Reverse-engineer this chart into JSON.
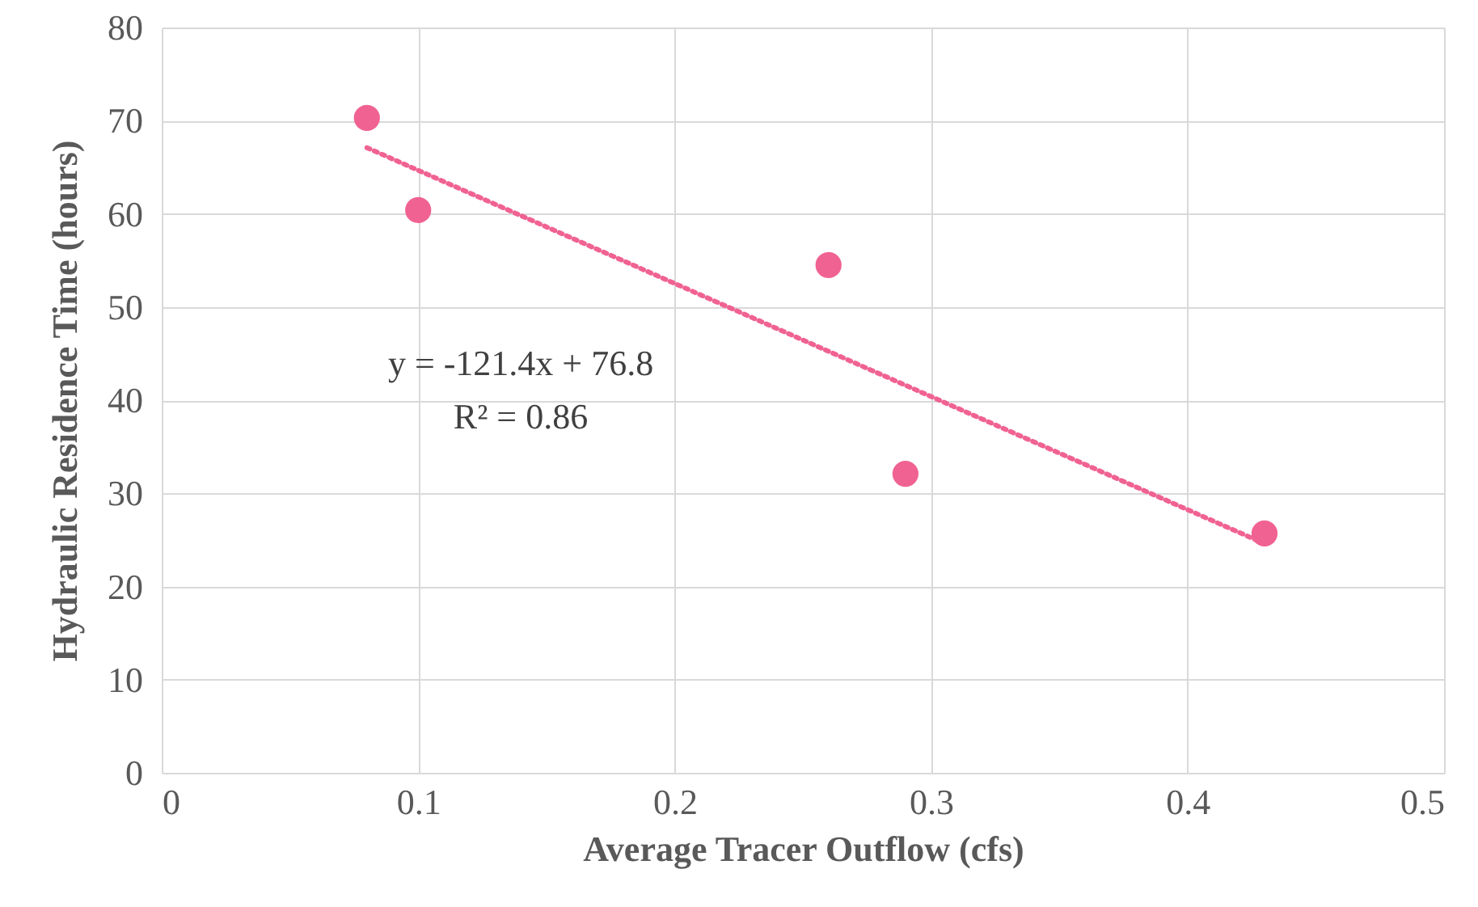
{
  "chart_data": {
    "type": "scatter",
    "xlabel": "Average Tracer Outflow (cfs)",
    "ylabel": "Hydraulic Residence Time (hours)",
    "xlim": [
      0,
      0.5
    ],
    "xticks": [
      0,
      0.1,
      0.2,
      0.3,
      0.4,
      0.5
    ],
    "ylim": [
      0,
      80
    ],
    "yticks": [
      0,
      10,
      20,
      30,
      40,
      50,
      60,
      70,
      80
    ],
    "grid": true,
    "series": [
      {
        "color": "#f06292",
        "marker": "circle",
        "x": [
          0.08,
          0.1,
          0.26,
          0.29,
          0.43
        ],
        "values": [
          70.3,
          60.4,
          54.5,
          32.1,
          25.7
        ]
      },
      {
        "type": "line",
        "color": "#f06292",
        "line_style": "dotted",
        "marker": "none",
        "x": [
          0.08,
          0.43
        ],
        "values": [
          67.1,
          24.6
        ]
      }
    ],
    "annotations": [
      "y = -121.4x + 76.8",
      "R² = 0.86"
    ]
  }
}
